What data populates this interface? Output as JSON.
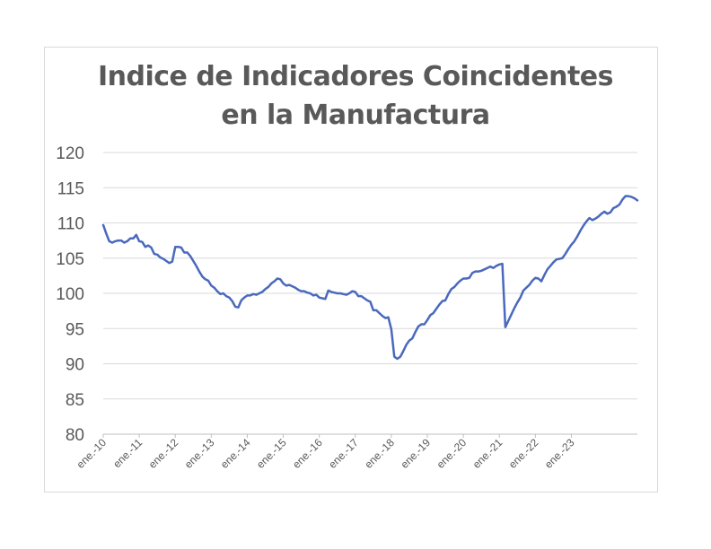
{
  "chart_data": {
    "type": "line",
    "title": "Indice de Indicadores Coincidentes",
    "subtitle": "en la Manufactura",
    "xlabel": "",
    "ylabel": "",
    "ylim": [
      80,
      120
    ],
    "yticks": [
      "80",
      "85",
      "90",
      "95",
      "100",
      "105",
      "110",
      "115",
      "120"
    ],
    "xticks": [
      "ene.-10",
      "ene.-11",
      "ene.-12",
      "ene.-13",
      "ene.-14",
      "ene.-15",
      "ene.-16",
      "ene.-17",
      "ene.-18",
      "ene.-19",
      "ene.-20",
      "ene.-21",
      "ene.-22",
      "ene.-23"
    ],
    "grid": true,
    "legend": "none",
    "series": [
      {
        "color": "#4a69bd",
        "start": "ene.-10",
        "frequency": "monthly",
        "values": [
          109.7,
          108.5,
          107.4,
          107.2,
          107.4,
          107.5,
          107.5,
          107.2,
          107.4,
          107.8,
          107.8,
          108.3,
          107.4,
          107.3,
          106.6,
          106.8,
          106.5,
          105.6,
          105.5,
          105.1,
          104.9,
          104.6,
          104.3,
          104.5,
          106.6,
          106.6,
          106.5,
          105.8,
          105.8,
          105.3,
          104.6,
          103.9,
          103.1,
          102.4,
          102.0,
          101.8,
          101.1,
          100.8,
          100.3,
          99.9,
          100.0,
          99.6,
          99.4,
          98.9,
          98.1,
          98.0,
          99.0,
          99.4,
          99.7,
          99.7,
          99.9,
          99.8,
          100.0,
          100.2,
          100.6,
          100.9,
          101.4,
          101.7,
          102.1,
          102.0,
          101.4,
          101.1,
          101.2,
          101.0,
          100.8,
          100.5,
          100.3,
          100.3,
          100.1,
          100.0,
          99.7,
          99.8,
          99.4,
          99.3,
          99.2,
          100.4,
          100.2,
          100.1,
          100.0,
          100.0,
          99.9,
          99.8,
          100.0,
          100.3,
          100.2,
          99.6,
          99.6,
          99.3,
          99.0,
          98.8,
          97.6,
          97.6,
          97.2,
          96.8,
          96.5,
          96.6,
          94.9,
          91.0,
          90.7,
          91.0,
          91.8,
          92.7,
          93.3,
          93.6,
          94.5,
          95.3,
          95.6,
          95.6,
          96.2,
          96.9,
          97.2,
          97.8,
          98.4,
          98.9,
          99.0,
          99.9,
          100.6,
          100.9,
          101.4,
          101.8,
          102.1,
          102.1,
          102.2,
          102.9,
          103.1,
          103.1,
          103.2,
          103.4,
          103.6,
          103.8,
          103.6,
          103.9,
          104.1,
          104.2,
          95.2,
          96.1,
          97.0,
          97.9,
          98.7,
          99.4,
          100.4,
          100.8,
          101.2,
          101.8,
          102.2,
          102.1,
          101.7,
          102.6,
          103.4,
          103.9,
          104.4,
          104.8,
          104.9,
          105.0,
          105.6,
          106.3,
          106.9,
          107.4,
          108.1,
          108.9,
          109.6,
          110.2,
          110.7,
          110.4,
          110.6,
          110.9,
          111.3,
          111.6,
          111.3,
          111.5,
          112.1,
          112.3,
          112.6,
          113.3,
          113.8,
          113.8,
          113.7,
          113.5,
          113.2
        ]
      }
    ]
  }
}
